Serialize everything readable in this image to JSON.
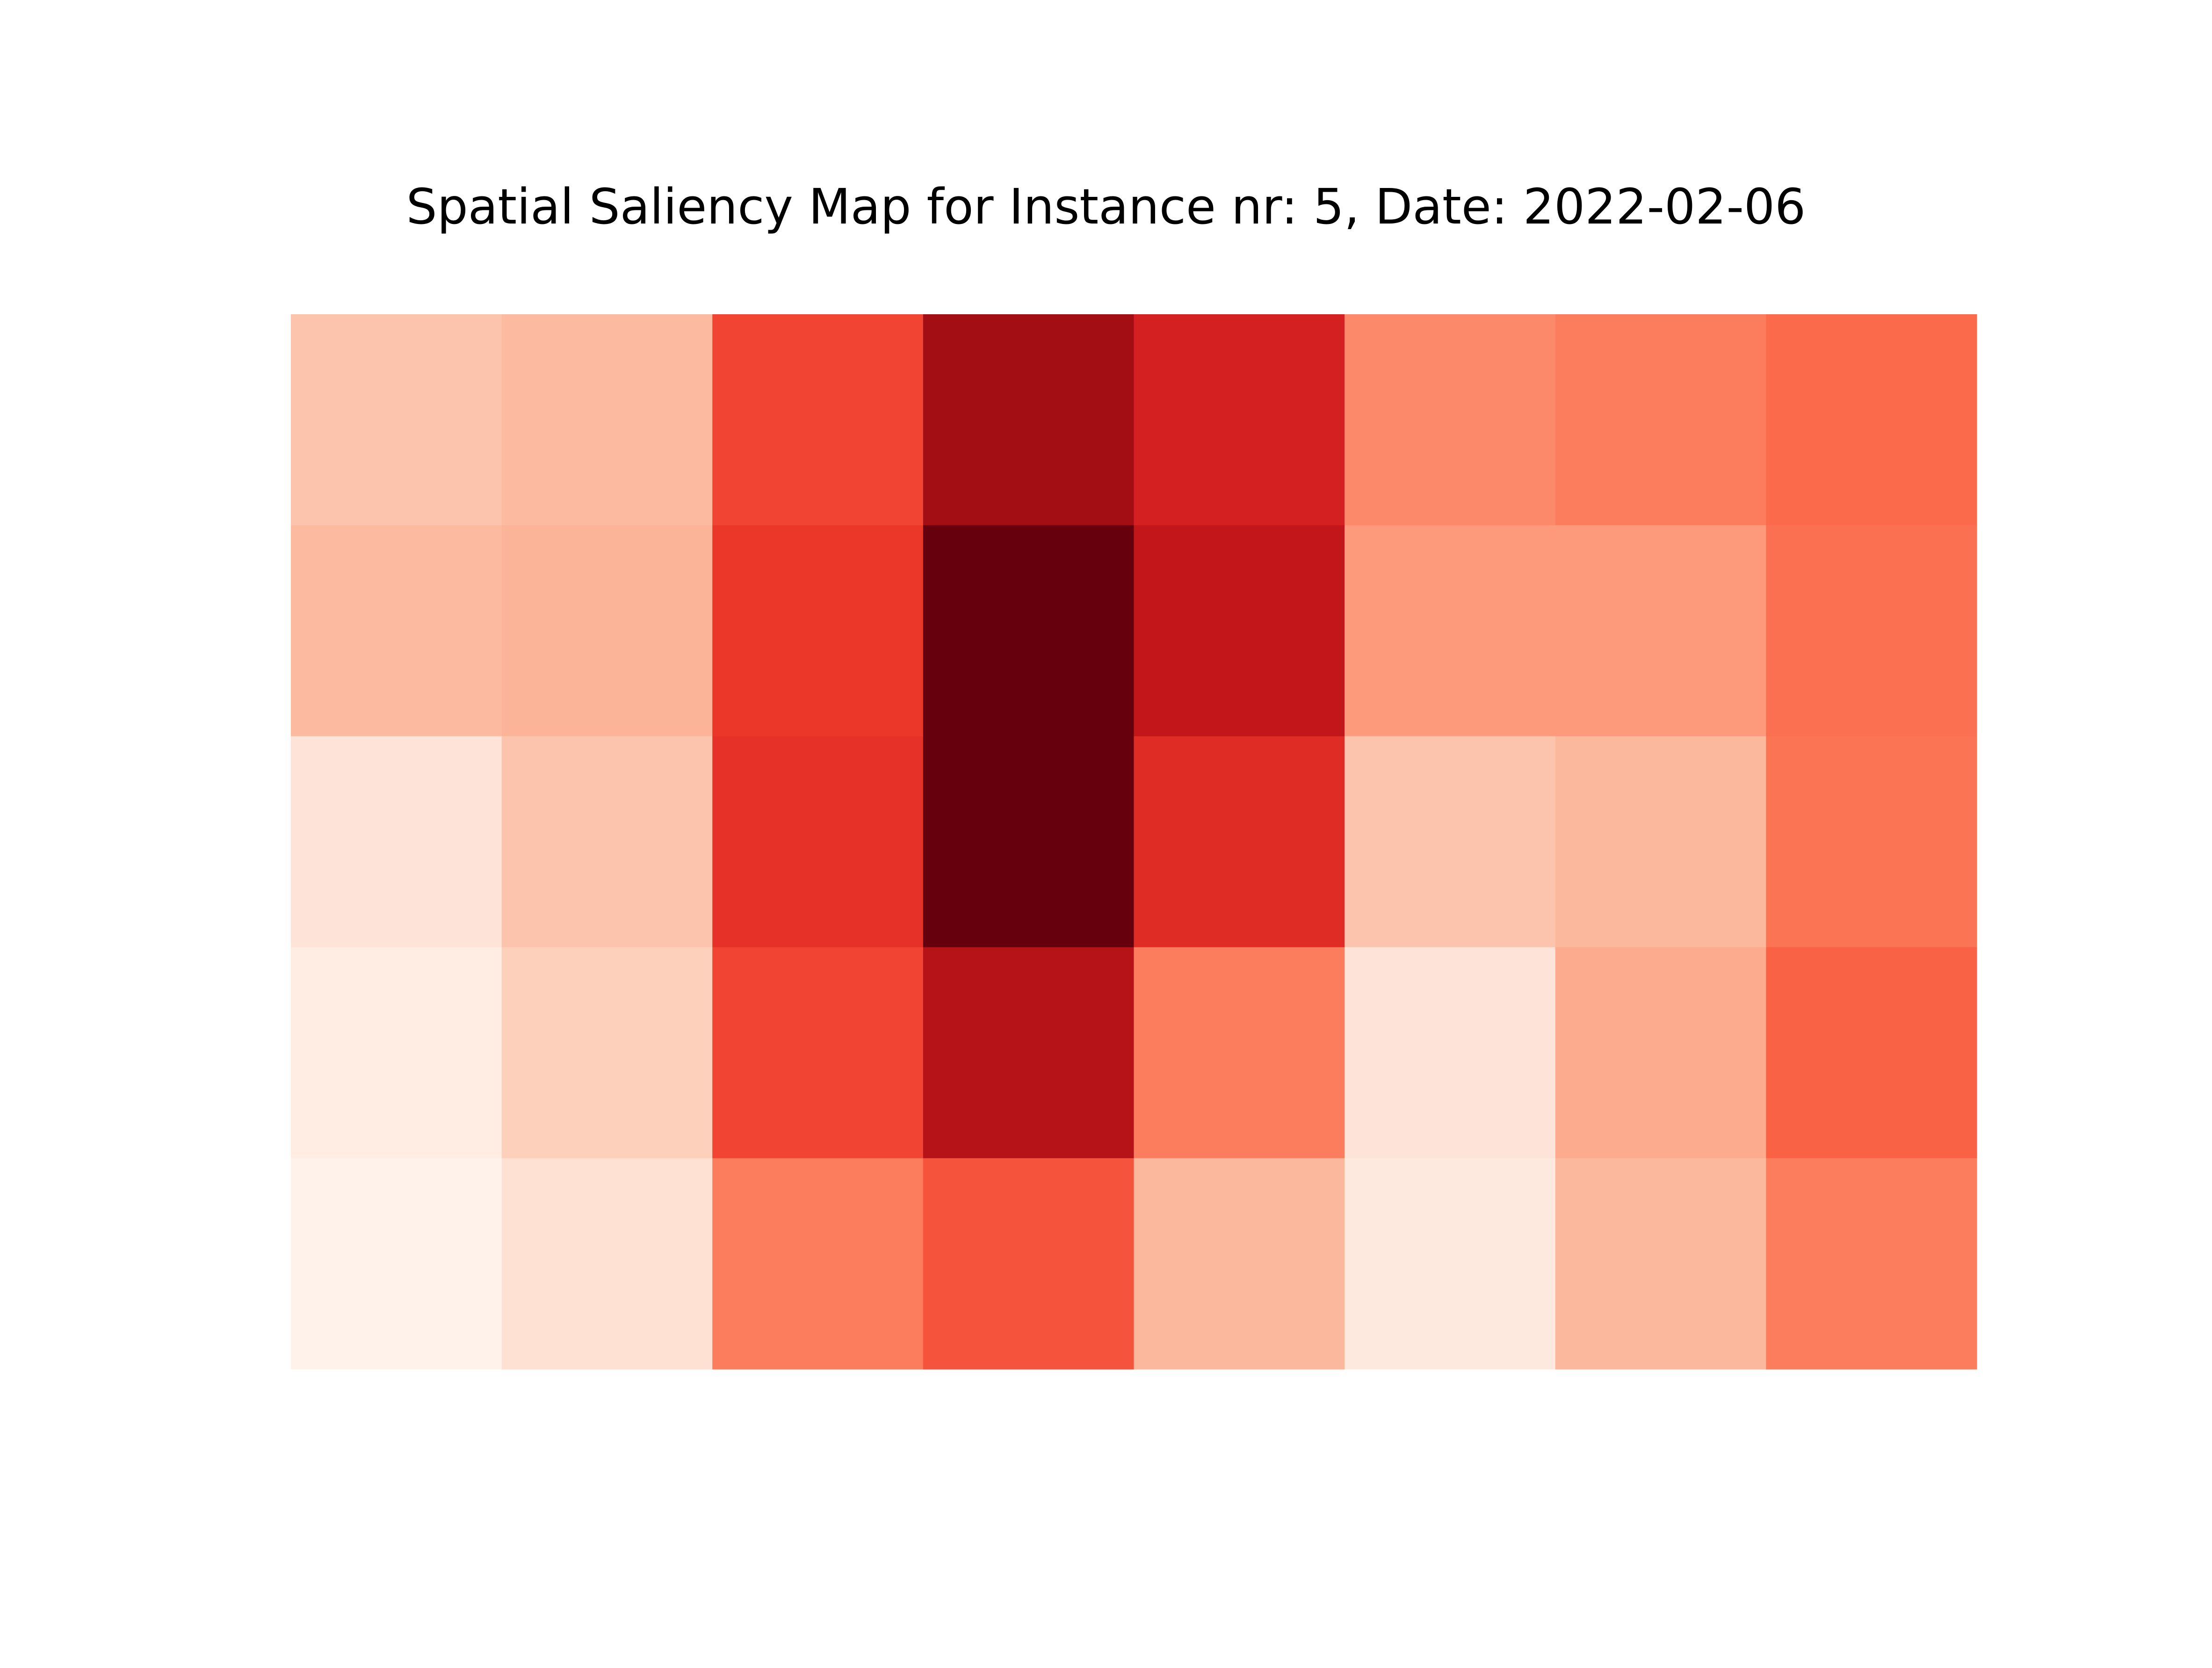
{
  "chart_data": {
    "type": "heatmap",
    "title": "Spatial Saliency Map for Instance nr: 5, Date: 2022-02-06",
    "colormap": "Reds",
    "axes_visible": false,
    "grid": false,
    "rows": 5,
    "cols": 8,
    "vmin": 0.0,
    "vmax": 1.0,
    "values": [
      [
        0.22,
        0.25,
        0.6,
        0.88,
        0.72,
        0.4,
        0.44,
        0.5
      ],
      [
        0.25,
        0.27,
        0.64,
        1.0,
        0.78,
        0.35,
        0.35,
        0.48
      ],
      [
        0.1,
        0.22,
        0.66,
        1.0,
        0.68,
        0.22,
        0.26,
        0.47
      ],
      [
        0.05,
        0.18,
        0.6,
        0.82,
        0.44,
        0.1,
        0.3,
        0.52
      ],
      [
        0.02,
        0.12,
        0.44,
        0.56,
        0.26,
        0.07,
        0.26,
        0.44
      ]
    ]
  }
}
